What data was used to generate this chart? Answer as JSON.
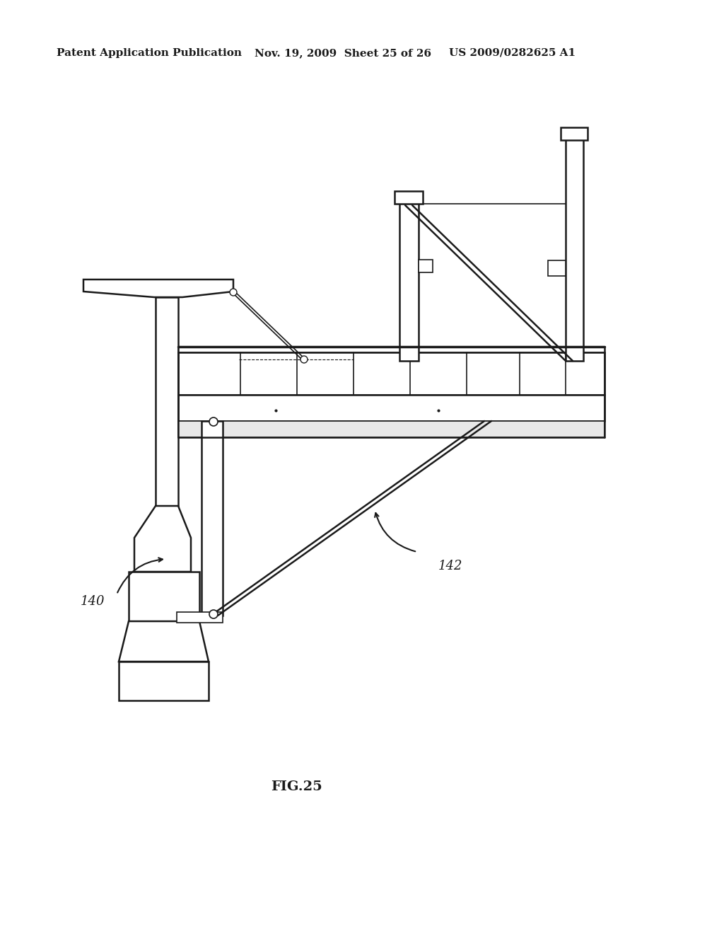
{
  "bg_color": "#ffffff",
  "line_color": "#1a1a1a",
  "header_left": "Patent Application Publication",
  "header_mid": "Nov. 19, 2009  Sheet 25 of 26",
  "header_right": "US 2009/0282625 A1",
  "fig_label": "FIG.25",
  "label_140": "140",
  "label_142": "142"
}
